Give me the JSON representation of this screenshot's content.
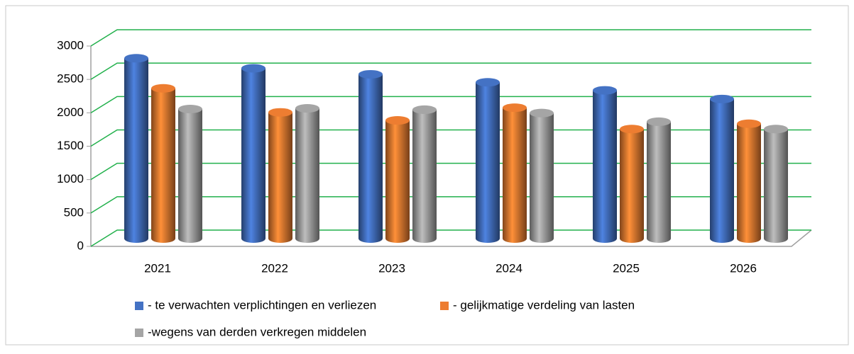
{
  "chart_data": {
    "type": "bar",
    "categories": [
      "2021",
      "2022",
      "2023",
      "2024",
      "2025",
      "2026"
    ],
    "series": [
      {
        "name": "- te verwachten verplichtingen en verliezen",
        "color": "#4472c4",
        "values": [
          2700,
          2550,
          2460,
          2340,
          2220,
          2090
        ]
      },
      {
        "name": "- gelijkmatige verdeling van lasten",
        "color": "#ed7d31",
        "values": [
          2250,
          1890,
          1770,
          1960,
          1640,
          1720
        ]
      },
      {
        "name": "-wegens van derden verkregen middelen",
        "color": "#a5a5a5",
        "values": [
          1940,
          1950,
          1930,
          1880,
          1750,
          1640
        ]
      }
    ],
    "ylim": [
      0,
      3000
    ],
    "yticks": [
      0,
      500,
      1000,
      1500,
      2000,
      2500,
      3000
    ],
    "grid": true
  }
}
